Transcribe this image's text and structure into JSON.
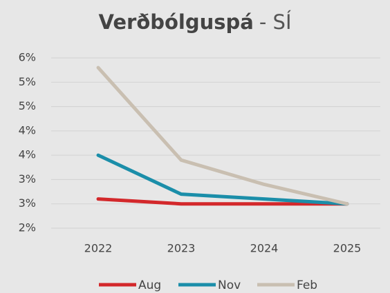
{
  "chart_data": {
    "type": "line",
    "title": {
      "main": "Verðbólguspá",
      "suffix": "- SÍ"
    },
    "categories": [
      "2022",
      "2023",
      "2024",
      "2025"
    ],
    "series": [
      {
        "name": "Aug",
        "color": "#d3282b",
        "values": [
          2.6,
          2.5,
          2.5,
          2.5
        ]
      },
      {
        "name": "Nov",
        "color": "#1b8ea9",
        "values": [
          3.5,
          2.7,
          2.6,
          2.5
        ]
      },
      {
        "name": "Feb",
        "color": "#c9bfb1",
        "values": [
          5.3,
          3.4,
          2.9,
          2.5
        ]
      }
    ],
    "ylim": [
      2,
      5.5
    ],
    "yticks": [
      {
        "value": 2,
        "label": "2%"
      },
      {
        "value": 2.5,
        "label": "3%"
      },
      {
        "value": 3,
        "label": "3%"
      },
      {
        "value": 3.5,
        "label": "4%"
      },
      {
        "value": 4,
        "label": "4%"
      },
      {
        "value": 4.5,
        "label": "5%"
      },
      {
        "value": 5,
        "label": "5%"
      },
      {
        "value": 5.5,
        "label": "6%"
      }
    ],
    "grid": true,
    "legend": "bottom"
  }
}
